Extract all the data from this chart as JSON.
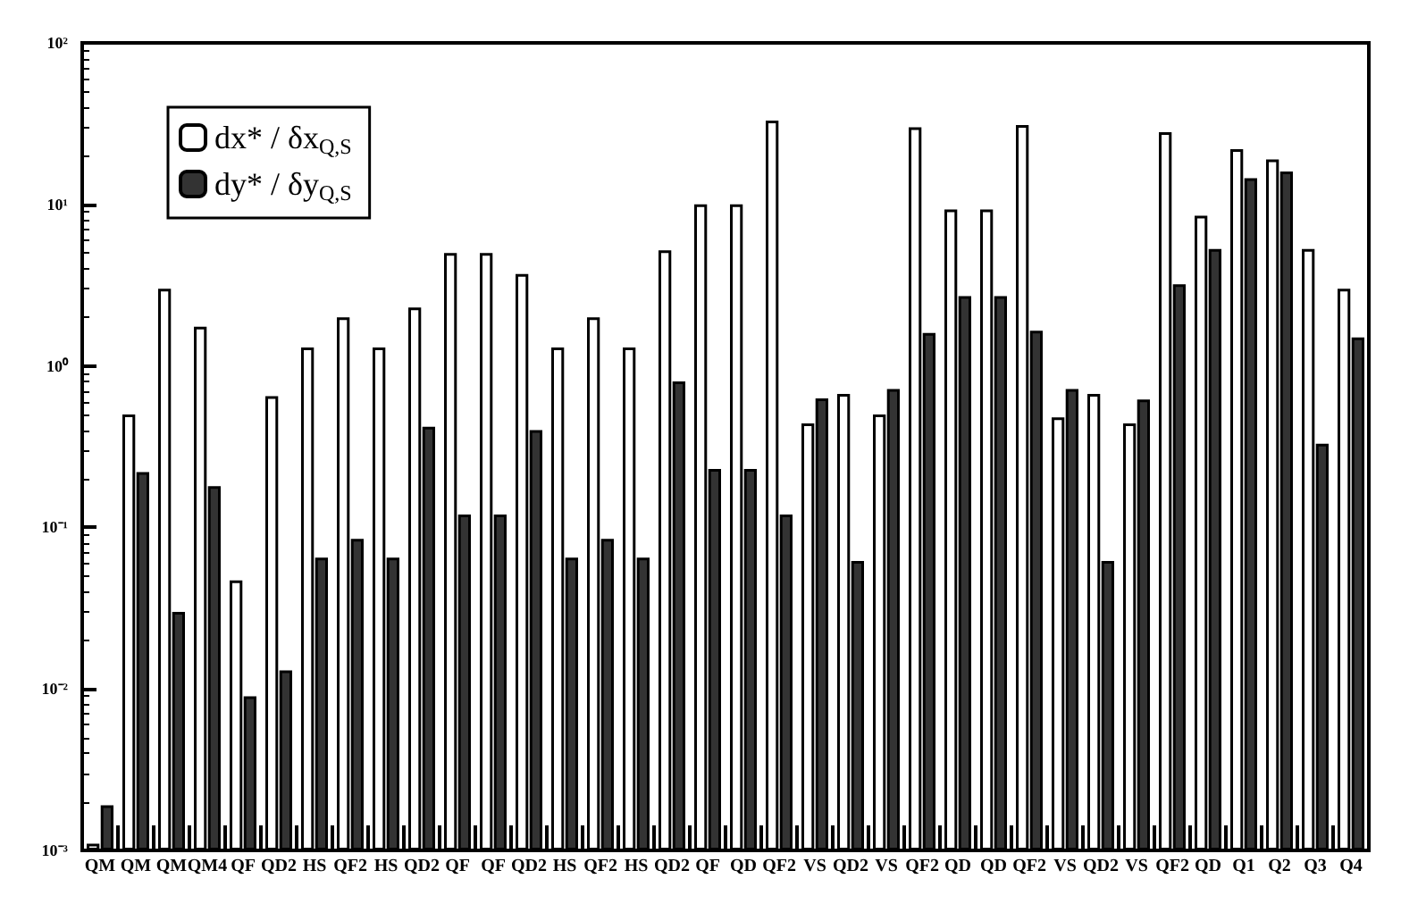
{
  "chart_data": {
    "type": "bar",
    "categories": [
      "QM",
      "QM",
      "QM",
      "QM4",
      "QF",
      "QD2",
      "HS",
      "QF2",
      "HS",
      "QD2",
      "QF",
      "QF",
      "QD2",
      "HS",
      "QF2",
      "HS",
      "QD2",
      "QF",
      "QD",
      "QF2",
      "VS",
      "QD2",
      "VS",
      "QF2",
      "QD",
      "QD",
      "QF2",
      "VS",
      "QD2",
      "VS",
      "QF2",
      "QD",
      "Q1",
      "Q2",
      "Q3",
      "Q4"
    ],
    "series": [
      {
        "name": "dx* / δx$_{Q,S}$",
        "color": "#ffffff",
        "values": [
          0.0011,
          0.5,
          3,
          1.75,
          0.047,
          0.65,
          1.3,
          2,
          1.3,
          2.3,
          5,
          5,
          3.7,
          1.3,
          2,
          1.3,
          5.2,
          10,
          10,
          33,
          0.44,
          0.67,
          0.5,
          30,
          9.3,
          9.3,
          31,
          0.48,
          0.67,
          0.44,
          28,
          8.5,
          22,
          19,
          5.3,
          3
        ]
      },
      {
        "name": "dy* / δy$_{Q,S}$",
        "color": "#333333",
        "values": [
          0.0019,
          0.22,
          0.03,
          0.18,
          0.009,
          0.013,
          0.065,
          0.085,
          0.065,
          0.42,
          0.12,
          0.12,
          0.4,
          0.065,
          0.085,
          0.065,
          0.8,
          0.23,
          0.23,
          0.12,
          0.63,
          0.062,
          0.72,
          1.6,
          2.7,
          2.7,
          1.65,
          0.72,
          0.062,
          0.62,
          3.2,
          5.3,
          14.5,
          16,
          0.33,
          1.5
        ]
      }
    ],
    "log": "y",
    "ylim": [
      0.001,
      100
    ],
    "yticks": [
      {
        "value": 0.001,
        "label": "10⁻³"
      },
      {
        "value": 0.01,
        "label": "10⁻²"
      },
      {
        "value": 0.1,
        "label": "10⁻¹"
      },
      {
        "value": 1,
        "label": "10⁰"
      },
      {
        "value": 10,
        "label": "10¹"
      },
      {
        "value": 100,
        "label": "10²"
      }
    ],
    "legend": "top left",
    "grid": false
  }
}
